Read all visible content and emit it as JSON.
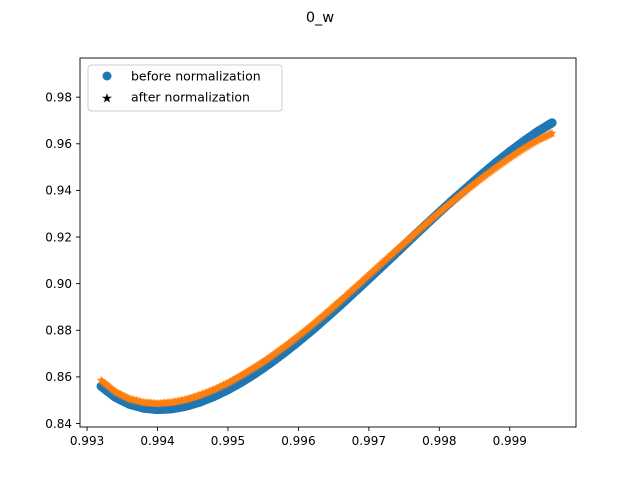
{
  "chart_data": {
    "type": "scatter",
    "title": "0_w",
    "xlabel": "",
    "ylabel": "",
    "xlim": [
      0.9929,
      0.99994
    ],
    "ylim": [
      0.8385,
      0.9968
    ],
    "x_ticks": [
      0.993,
      0.994,
      0.995,
      0.996,
      0.997,
      0.998,
      0.999
    ],
    "x_tick_labels": [
      "0.993",
      "0.994",
      "0.995",
      "0.996",
      "0.997",
      "0.998",
      "0.999"
    ],
    "y_ticks": [
      0.84,
      0.86,
      0.88,
      0.9,
      0.92,
      0.94,
      0.96,
      0.98
    ],
    "y_tick_labels": [
      "0.84",
      "0.86",
      "0.88",
      "0.90",
      "0.92",
      "0.94",
      "0.96",
      "0.98"
    ],
    "grid": false,
    "legend_position": "top-left",
    "series": [
      {
        "name": "before normalization",
        "marker": "circle",
        "color": "#1f77b4",
        "x": [
          0.9932,
          0.9934,
          0.9936,
          0.9938,
          0.994,
          0.9942,
          0.9944,
          0.9946,
          0.9948,
          0.995,
          0.9952,
          0.9954,
          0.9956,
          0.9958,
          0.996,
          0.9962,
          0.9964,
          0.9966,
          0.9968,
          0.997,
          0.9972,
          0.9974,
          0.9976,
          0.9978,
          0.998,
          0.9982,
          0.9984,
          0.9986,
          0.9988,
          0.999,
          0.9992,
          0.9994,
          0.9996
        ],
        "y": [
          0.856,
          0.8513,
          0.8483,
          0.8466,
          0.846,
          0.8463,
          0.8474,
          0.8492,
          0.8516,
          0.8545,
          0.8579,
          0.8617,
          0.8659,
          0.8704,
          0.8752,
          0.8802,
          0.8855,
          0.8909,
          0.8965,
          0.9021,
          0.9078,
          0.9135,
          0.9193,
          0.925,
          0.9306,
          0.9361,
          0.9414,
          0.9467,
          0.9518,
          0.9566,
          0.9611,
          0.9653,
          0.969
        ]
      },
      {
        "name": "after normalization",
        "marker": "star",
        "color": "#ff7f0e",
        "x": [
          0.9932,
          0.9934,
          0.9936,
          0.9938,
          0.994,
          0.9942,
          0.9944,
          0.9946,
          0.9948,
          0.995,
          0.9952,
          0.9954,
          0.9956,
          0.9958,
          0.996,
          0.9962,
          0.9964,
          0.9966,
          0.9968,
          0.997,
          0.9972,
          0.9974,
          0.9976,
          0.9978,
          0.998,
          0.9982,
          0.9984,
          0.9986,
          0.9988,
          0.999,
          0.9992,
          0.9994,
          0.9996
        ],
        "y": [
          0.8585,
          0.8536,
          0.8506,
          0.849,
          0.8485,
          0.849,
          0.8502,
          0.8521,
          0.8545,
          0.8574,
          0.8608,
          0.8645,
          0.8685,
          0.8729,
          0.8775,
          0.8824,
          0.8875,
          0.8928,
          0.8982,
          0.9037,
          0.9092,
          0.9146,
          0.92,
          0.9254,
          0.9306,
          0.9356,
          0.9405,
          0.9452,
          0.9497,
          0.954,
          0.958,
          0.9616,
          0.9645
        ]
      }
    ]
  }
}
